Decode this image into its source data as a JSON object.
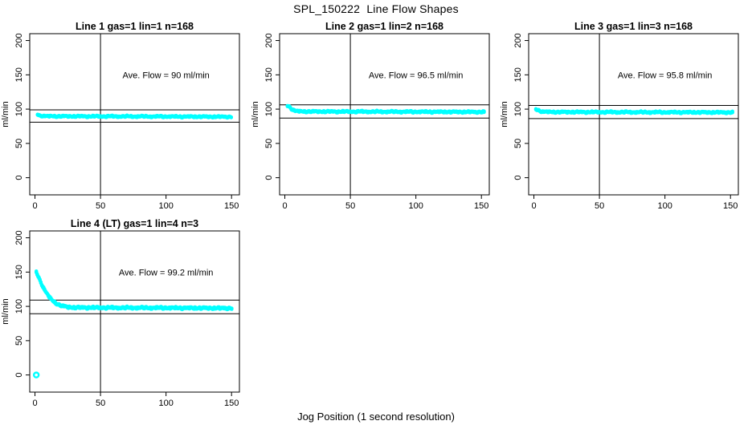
{
  "figure": {
    "title": "SPL_150222  Line Flow Shapes",
    "xlabel": "Jog Position (1 second resolution)",
    "background_color": "#FFFFFF",
    "axis_color": "#000000",
    "point_color": "#00FFFF"
  },
  "chart_data": [
    {
      "type": "scatter",
      "title": "Line 1 gas=1 lin=1 n=168",
      "annotation": "Ave. Flow =  90  ml/min",
      "annotation_xy": [
        100,
        150
      ],
      "ave_flow": 90,
      "n_runs": 168,
      "ylabel": "ml/min",
      "xticks": [
        0,
        50,
        100,
        150
      ],
      "yticks": [
        0,
        50,
        100,
        150,
        200
      ],
      "xlim": [
        -4,
        156
      ],
      "ylim": [
        -25,
        210
      ],
      "grid": false,
      "vline_x": 50,
      "ref_lines": [
        99,
        81
      ],
      "band_halfwidth": 0.9,
      "points_step": 0.75,
      "x_range": [
        2,
        150
      ],
      "breakpoints": [
        [
          2,
          92.5
        ],
        [
          3.5,
          90.5
        ],
        [
          10,
          89.6
        ],
        [
          80,
          89.3
        ],
        [
          150,
          88.8
        ]
      ]
    },
    {
      "type": "scatter",
      "title": "Line 2 gas=1 lin=2 n=168",
      "annotation": "Ave. Flow =  96.5  ml/min",
      "annotation_xy": [
        100,
        150
      ],
      "ave_flow": 96.5,
      "n_runs": 168,
      "ylabel": "ml/min",
      "xticks": [
        0,
        50,
        100,
        150
      ],
      "yticks": [
        0,
        50,
        100,
        150,
        200
      ],
      "xlim": [
        -4,
        156
      ],
      "ylim": [
        -25,
        210
      ],
      "grid": false,
      "vline_x": 50,
      "ref_lines": [
        106.2,
        86.9
      ],
      "band_halfwidth": 1.0,
      "points_step": 0.75,
      "x_range": [
        2,
        152
      ],
      "breakpoints": [
        [
          2,
          105
        ],
        [
          3.2,
          104
        ],
        [
          5,
          100.5
        ],
        [
          8,
          97.5
        ],
        [
          12,
          96.5
        ],
        [
          80,
          96.2
        ],
        [
          152,
          95.8
        ]
      ]
    },
    {
      "type": "scatter",
      "title": "Line 3 gas=1 lin=3 n=168",
      "annotation": "Ave. Flow =  95.8  ml/min",
      "annotation_xy": [
        100,
        150
      ],
      "ave_flow": 95.8,
      "n_runs": 168,
      "ylabel": "ml/min",
      "xticks": [
        0,
        50,
        100,
        150
      ],
      "yticks": [
        0,
        50,
        100,
        150,
        200
      ],
      "xlim": [
        -4,
        156
      ],
      "ylim": [
        -25,
        210
      ],
      "grid": false,
      "vline_x": 50,
      "ref_lines": [
        105.4,
        86.2
      ],
      "band_halfwidth": 1.0,
      "points_step": 0.75,
      "x_range": [
        1.5,
        152
      ],
      "breakpoints": [
        [
          1.5,
          100
        ],
        [
          3,
          98.5
        ],
        [
          6,
          96.5
        ],
        [
          12,
          95.8
        ],
        [
          80,
          95.5
        ],
        [
          152,
          95.2
        ]
      ]
    },
    {
      "type": "scatter",
      "title": "Line 4 (LT) gas=1 lin=4 n=3",
      "annotation": "Ave. Flow =  99.2  ml/min",
      "annotation_xy": [
        100,
        150
      ],
      "ave_flow": 99.2,
      "n_runs": 3,
      "ylabel": "ml/min",
      "xticks": [
        0,
        50,
        100,
        150
      ],
      "yticks": [
        0,
        50,
        100,
        150,
        200
      ],
      "xlim": [
        -4,
        156
      ],
      "ylim": [
        -25,
        210
      ],
      "grid": false,
      "vline_x": 50,
      "ref_lines": [
        109.1,
        89.3
      ],
      "band_halfwidth": 1.3,
      "points_step": 0.7,
      "x_range": [
        1,
        150.5
      ],
      "breakpoints": [
        [
          1,
          150
        ],
        [
          2.5,
          144
        ],
        [
          4,
          137
        ],
        [
          6,
          129
        ],
        [
          8,
          122
        ],
        [
          10,
          116
        ],
        [
          12.5,
          110
        ],
        [
          15,
          106
        ],
        [
          18,
          102.5
        ],
        [
          21,
          100.5
        ],
        [
          25,
          99
        ],
        [
          30,
          98.3
        ],
        [
          60,
          98
        ],
        [
          100,
          97.8
        ],
        [
          150.5,
          97.3
        ]
      ],
      "outlier_points": [
        [
          1,
          0
        ]
      ]
    }
  ]
}
